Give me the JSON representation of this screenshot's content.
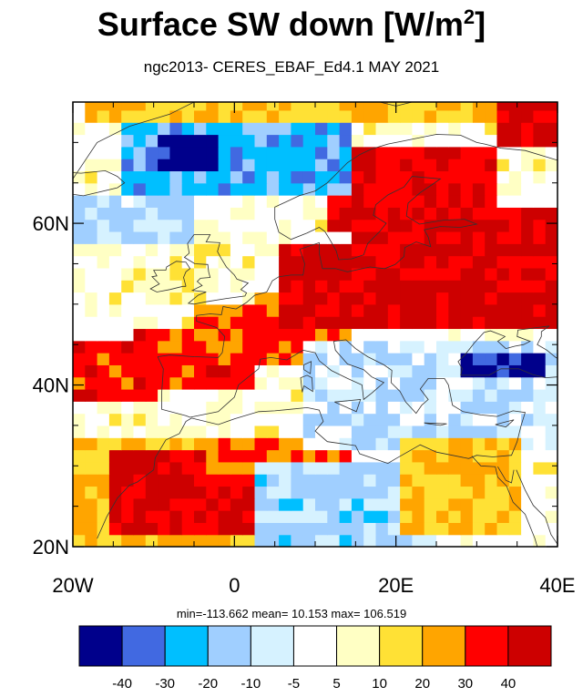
{
  "title_main": "Surface SW down [W/m",
  "title_sup": "2",
  "title_end": "]",
  "subtitle": "ngc2013- CERES_EBAF_Ed4.1  MAY 2021",
  "stats_text": "min=-113.662  mean=  10.153  max= 106.519",
  "colors": {
    "levels": [
      "#00008b",
      "#4169e1",
      "#00bfff",
      "#a0cfff",
      "#d6f2ff",
      "#ffffff",
      "#ffffc4",
      "#ffe135",
      "#ffa500",
      "#ff0000",
      "#cd0000"
    ],
    "coast": "#333333"
  },
  "chart_data": {
    "type": "heatmap",
    "title": "Surface SW down [W/m2]",
    "subtitle": "ngc2013- CERES_EBAF_Ed4.1  MAY 2021",
    "xlim": [
      -20,
      40
    ],
    "ylim": [
      20,
      75
    ],
    "x_ticks": [
      -20,
      0,
      20,
      40
    ],
    "x_tick_labels": [
      "20W",
      "0",
      "20E",
      "40E"
    ],
    "y_ticks": [
      20,
      40,
      60
    ],
    "y_tick_labels": [
      "20N",
      "40N",
      "60N"
    ],
    "colorbar": {
      "bounds": [
        -40,
        -30,
        -20,
        -10,
        -5,
        5,
        10,
        20,
        30,
        40
      ],
      "labels": [
        "-40",
        "-30",
        "-20",
        "-10",
        "-5",
        "5",
        "10",
        "20",
        "30",
        "40"
      ]
    },
    "stats": {
      "min": -113.662,
      "mean": 10.153,
      "max": 106.519
    },
    "regions": [
      {
        "lon": [
          -20,
          40
        ],
        "lat": [
          20,
          75
        ],
        "value": 3
      },
      {
        "lon": [
          -12,
          2
        ],
        "lat": [
          40,
          47
        ],
        "value": 35
      },
      {
        "lon": [
          -5,
          15
        ],
        "lat": [
          42,
          51
        ],
        "value": 30
      },
      {
        "lon": [
          6,
          40
        ],
        "lat": [
          47,
          57
        ],
        "value": 45
      },
      {
        "lon": [
          15,
          40
        ],
        "lat": [
          53,
          62
        ],
        "value": 40
      },
      {
        "lon": [
          12,
          32
        ],
        "lat": [
          59,
          69
        ],
        "value": 38
      },
      {
        "lon": [
          -20,
          15
        ],
        "lat": [
          20,
          34
        ],
        "value": 20
      },
      {
        "lon": [
          -16,
          5
        ],
        "lat": [
          22,
          32
        ],
        "value": 42
      },
      {
        "lon": [
          -4,
          14
        ],
        "lat": [
          29,
          34
        ],
        "value": 28
      },
      {
        "lon": [
          8,
          40
        ],
        "lat": [
          32,
          45
        ],
        "value": -8
      },
      {
        "lon": [
          3,
          25
        ],
        "lat": [
          20,
          31
        ],
        "value": -14
      },
      {
        "lon": [
          -14,
          15
        ],
        "lat": [
          64,
          72
        ],
        "value": -25
      },
      {
        "lon": [
          -9,
          -2
        ],
        "lat": [
          66,
          71
        ],
        "value": -45
      },
      {
        "lon": [
          -20,
          -5
        ],
        "lat": [
          57,
          64
        ],
        "value": -12
      },
      {
        "lon": [
          -8,
          2
        ],
        "lat": [
          50,
          58
        ],
        "value": 8
      },
      {
        "lon": [
          -20,
          -10
        ],
        "lat": [
          38,
          46
        ],
        "value": 35
      },
      {
        "lon": [
          -18,
          40
        ],
        "lat": [
          72,
          75
        ],
        "value": 20
      },
      {
        "lon": [
          32,
          40
        ],
        "lat": [
          69,
          75
        ],
        "value": 42
      },
      {
        "lon": [
          28,
          38
        ],
        "lat": [
          41,
          44
        ],
        "value": -45
      },
      {
        "lon": [
          20,
          36
        ],
        "lat": [
          21,
          33
        ],
        "value": 18
      }
    ]
  }
}
